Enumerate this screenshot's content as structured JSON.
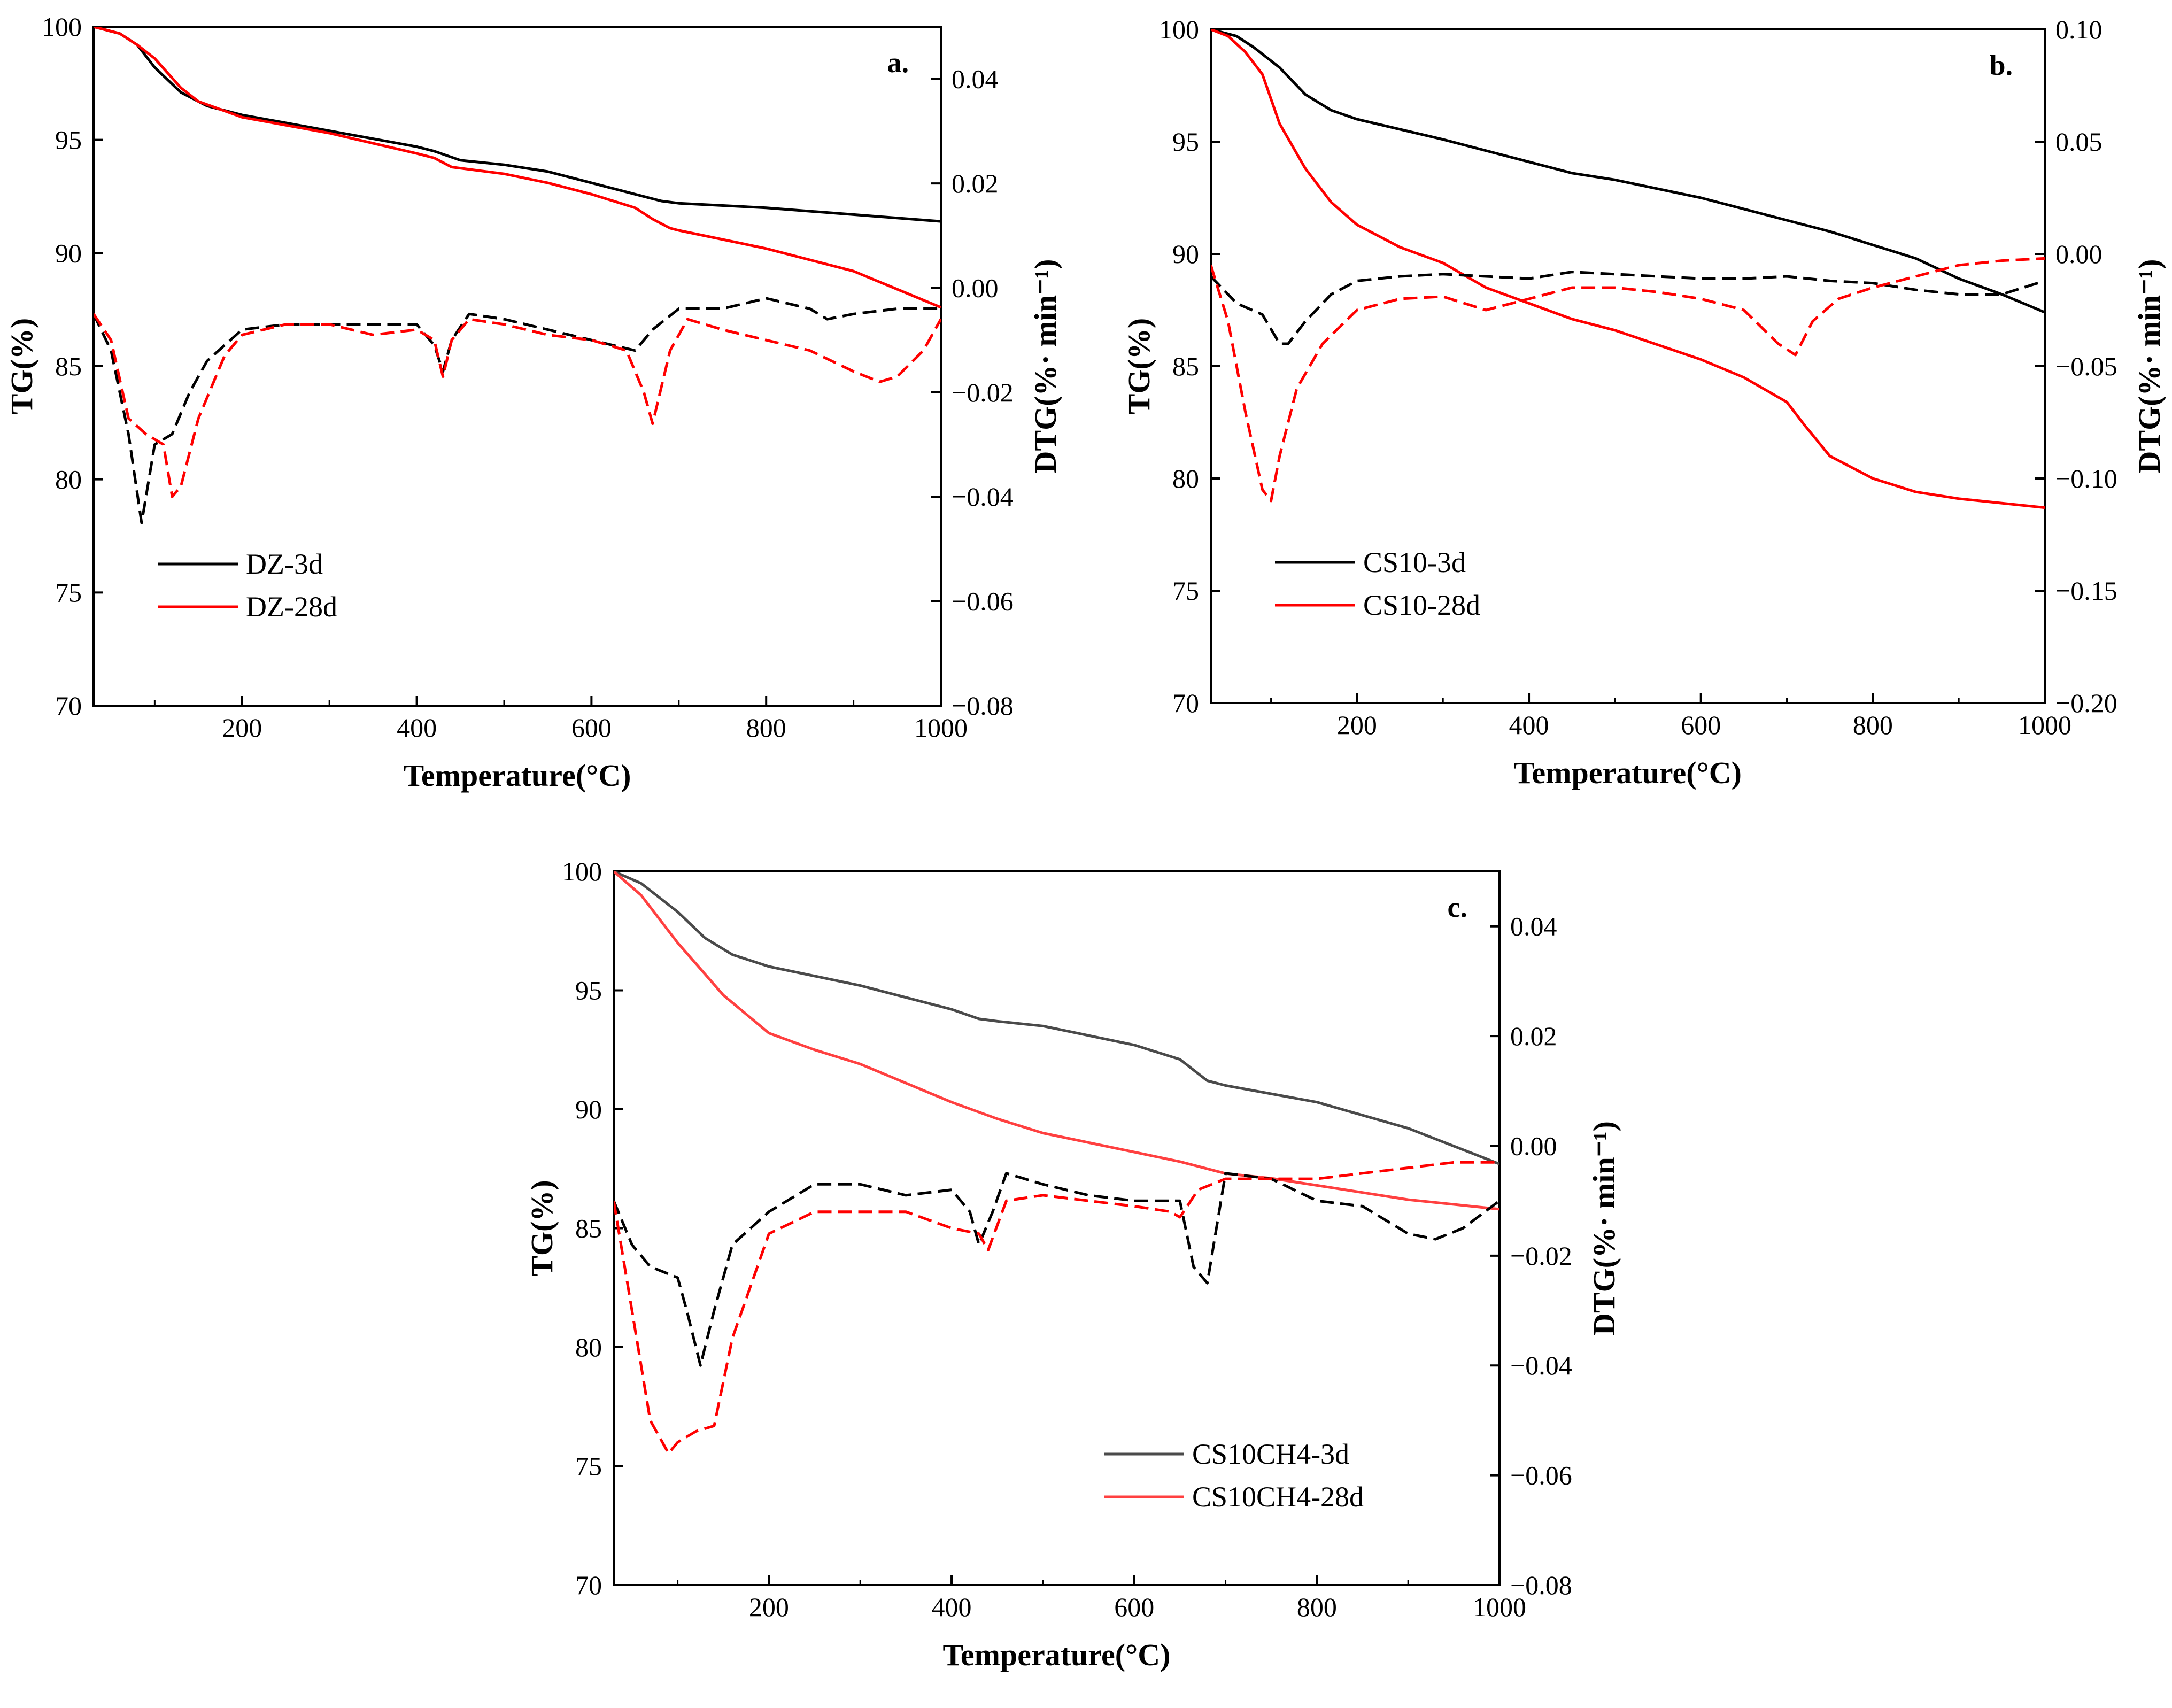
{
  "chart_data": [
    {
      "type": "line",
      "panel_label": "a.",
      "xlabel": "Temperature(°C)",
      "ylabel": "TG(%)",
      "y2label": "DTG(%· min⁻¹)",
      "xlim": [
        30,
        1000
      ],
      "ylim": [
        70,
        100
      ],
      "y2lim": [
        -0.08,
        0.05
      ],
      "xticks": [
        "200",
        "400",
        "600",
        "800",
        "1000"
      ],
      "yticks": [
        "70",
        "75",
        "80",
        "85",
        "90",
        "95",
        "100"
      ],
      "y2ticks": [
        "−0.08",
        "−0.06",
        "−0.04",
        "−0.02",
        "0.00",
        "0.02",
        "0.04"
      ],
      "legend_position": "lower-left",
      "legend": [
        "DZ-3d",
        "DZ-28d"
      ],
      "series": [
        {
          "name": "DZ-3d",
          "axis": "TG",
          "color": "#000000",
          "style": "solid",
          "x": [
            30,
            60,
            80,
            100,
            130,
            160,
            200,
            300,
            400,
            420,
            450,
            500,
            550,
            600,
            650,
            680,
            700,
            800,
            900,
            1000
          ],
          "y": [
            100,
            99.7,
            99.2,
            98.2,
            97.1,
            96.5,
            96.1,
            95.4,
            94.7,
            94.5,
            94.1,
            93.9,
            93.6,
            93.1,
            92.6,
            92.3,
            92.2,
            92.0,
            91.7,
            91.4
          ]
        },
        {
          "name": "DZ-28d",
          "axis": "TG",
          "color": "#ff0000",
          "style": "solid",
          "x": [
            30,
            60,
            80,
            100,
            130,
            150,
            200,
            300,
            400,
            420,
            440,
            500,
            550,
            600,
            650,
            670,
            690,
            700,
            800,
            900,
            1000
          ],
          "y": [
            100,
            99.7,
            99.2,
            98.6,
            97.3,
            96.7,
            96.0,
            95.3,
            94.4,
            94.2,
            93.8,
            93.5,
            93.1,
            92.6,
            92.0,
            91.5,
            91.1,
            91.0,
            90.2,
            89.2,
            87.6
          ]
        },
        {
          "name": "DZ-3d DTG",
          "axis": "DTG",
          "color": "#000000",
          "style": "dashed",
          "x": [
            30,
            50,
            70,
            85,
            100,
            120,
            140,
            160,
            200,
            250,
            300,
            350,
            400,
            420,
            430,
            440,
            460,
            500,
            550,
            600,
            650,
            670,
            700,
            750,
            800,
            850,
            870,
            900,
            950,
            1000
          ],
          "y": [
            -0.005,
            -0.012,
            -0.028,
            -0.045,
            -0.03,
            -0.028,
            -0.02,
            -0.014,
            -0.008,
            -0.007,
            -0.007,
            -0.007,
            -0.007,
            -0.011,
            -0.016,
            -0.01,
            -0.005,
            -0.006,
            -0.008,
            -0.01,
            -0.012,
            -0.008,
            -0.004,
            -0.004,
            -0.002,
            -0.004,
            -0.006,
            -0.005,
            -0.004,
            -0.004
          ]
        },
        {
          "name": "DZ-28d DTG",
          "axis": "DTG",
          "color": "#ff0000",
          "style": "dashed",
          "x": [
            30,
            50,
            70,
            90,
            110,
            120,
            130,
            150,
            180,
            200,
            250,
            300,
            350,
            400,
            420,
            430,
            440,
            460,
            500,
            550,
            600,
            640,
            660,
            670,
            690,
            710,
            750,
            800,
            850,
            900,
            930,
            950,
            980,
            1000
          ],
          "y": [
            -0.005,
            -0.01,
            -0.025,
            -0.028,
            -0.03,
            -0.04,
            -0.038,
            -0.025,
            -0.013,
            -0.009,
            -0.007,
            -0.007,
            -0.009,
            -0.008,
            -0.01,
            -0.017,
            -0.01,
            -0.006,
            -0.007,
            -0.009,
            -0.01,
            -0.012,
            -0.02,
            -0.026,
            -0.012,
            -0.006,
            -0.008,
            -0.01,
            -0.012,
            -0.016,
            -0.018,
            -0.017,
            -0.012,
            -0.006
          ]
        }
      ]
    },
    {
      "type": "line",
      "panel_label": "b.",
      "xlabel": "Temperature(°C)",
      "ylabel": "TG(%)",
      "y2label": "DTG(%· min⁻¹)",
      "xlim": [
        30,
        1000
      ],
      "ylim": [
        70,
        100
      ],
      "y2lim": [
        -0.2,
        0.1
      ],
      "xticks": [
        "200",
        "400",
        "600",
        "800",
        "1000"
      ],
      "yticks": [
        "70",
        "75",
        "80",
        "85",
        "90",
        "95",
        "100"
      ],
      "y2ticks": [
        "−0.20",
        "−0.15",
        "−0.10",
        "−0.05",
        "0.00",
        "0.05",
        "0.10"
      ],
      "legend_position": "lower-left",
      "legend": [
        "CS10-3d",
        "CS10-28d"
      ],
      "series": [
        {
          "name": "CS10-3d",
          "axis": "TG",
          "color": "#000000",
          "style": "solid",
          "x": [
            30,
            60,
            80,
            110,
            140,
            170,
            200,
            300,
            400,
            450,
            500,
            600,
            700,
            750,
            800,
            850,
            900,
            950,
            1000
          ],
          "y": [
            100,
            99.7,
            99.2,
            98.3,
            97.1,
            96.4,
            96.0,
            95.1,
            94.1,
            93.6,
            93.3,
            92.5,
            91.5,
            91.0,
            90.4,
            89.8,
            88.9,
            88.2,
            87.4
          ]
        },
        {
          "name": "CS10-28d",
          "axis": "TG",
          "color": "#ff0000",
          "style": "solid",
          "x": [
            30,
            50,
            70,
            90,
            110,
            140,
            170,
            200,
            250,
            300,
            350,
            400,
            450,
            500,
            600,
            650,
            700,
            720,
            750,
            800,
            850,
            900,
            950,
            1000
          ],
          "y": [
            100,
            99.7,
            99.0,
            98.0,
            95.8,
            93.8,
            92.3,
            91.3,
            90.3,
            89.6,
            88.5,
            87.8,
            87.1,
            86.6,
            85.3,
            84.5,
            83.4,
            82.4,
            81.0,
            80.0,
            79.4,
            79.1,
            78.9,
            78.7
          ]
        },
        {
          "name": "CS10-3d DTG",
          "axis": "DTG",
          "color": "#000000",
          "style": "dashed",
          "x": [
            30,
            60,
            90,
            110,
            120,
            140,
            170,
            200,
            250,
            300,
            350,
            400,
            450,
            500,
            550,
            600,
            650,
            700,
            750,
            800,
            850,
            900,
            950,
            1000
          ],
          "y": [
            -0.01,
            -0.022,
            -0.027,
            -0.04,
            -0.04,
            -0.03,
            -0.018,
            -0.012,
            -0.01,
            -0.009,
            -0.01,
            -0.011,
            -0.008,
            -0.009,
            -0.01,
            -0.011,
            -0.011,
            -0.01,
            -0.012,
            -0.013,
            -0.016,
            -0.018,
            -0.018,
            -0.012
          ]
        },
        {
          "name": "CS10-28d DTG",
          "axis": "DTG",
          "color": "#ff0000",
          "style": "dashed",
          "x": [
            30,
            50,
            70,
            90,
            100,
            110,
            130,
            160,
            200,
            250,
            300,
            350,
            380,
            400,
            450,
            500,
            550,
            600,
            650,
            690,
            710,
            730,
            760,
            800,
            850,
            900,
            950,
            1000
          ],
          "y": [
            -0.005,
            -0.03,
            -0.07,
            -0.105,
            -0.11,
            -0.09,
            -0.06,
            -0.04,
            -0.025,
            -0.02,
            -0.019,
            -0.025,
            -0.022,
            -0.02,
            -0.015,
            -0.015,
            -0.017,
            -0.02,
            -0.025,
            -0.04,
            -0.045,
            -0.03,
            -0.02,
            -0.015,
            -0.01,
            -0.005,
            -0.003,
            -0.002
          ]
        }
      ]
    },
    {
      "type": "line",
      "panel_label": "c.",
      "xlabel": "Temperature(°C)",
      "ylabel": "TG(%)",
      "y2label": "DTG(%· min⁻¹)",
      "xlim": [
        30,
        1000
      ],
      "ylim": [
        70,
        100
      ],
      "y2lim": [
        -0.08,
        0.05
      ],
      "xticks": [
        "200",
        "400",
        "600",
        "800",
        "1000"
      ],
      "yticks": [
        "70",
        "75",
        "80",
        "85",
        "90",
        "95",
        "100"
      ],
      "y2ticks": [
        "−0.08",
        "−0.06",
        "−0.04",
        "−0.02",
        "0.00",
        "0.02",
        "0.04"
      ],
      "legend_position": "lower-right",
      "legend": [
        "CS10CH4-3d",
        "CS10CH4-28d"
      ],
      "series": [
        {
          "name": "CS10CH4-3d",
          "axis": "TG",
          "color": "#4a4a4a",
          "style": "solid",
          "x": [
            30,
            60,
            100,
            130,
            160,
            200,
            300,
            400,
            430,
            450,
            500,
            600,
            650,
            680,
            700,
            800,
            900,
            1000
          ],
          "y": [
            100,
            99.5,
            98.3,
            97.2,
            96.5,
            96.0,
            95.2,
            94.2,
            93.8,
            93.7,
            93.5,
            92.7,
            92.1,
            91.2,
            91.0,
            90.3,
            89.2,
            87.7
          ]
        },
        {
          "name": "CS10CH4-28d",
          "axis": "TG",
          "color": "#ff4040",
          "style": "solid",
          "x": [
            30,
            60,
            100,
            150,
            200,
            250,
            300,
            400,
            450,
            500,
            600,
            650,
            700,
            750,
            800,
            900,
            1000
          ],
          "y": [
            100,
            99.0,
            97.0,
            94.8,
            93.2,
            92.5,
            91.9,
            90.3,
            89.6,
            89.0,
            88.2,
            87.8,
            87.3,
            87.1,
            86.8,
            86.2,
            85.8
          ]
        },
        {
          "name": "CS10CH4-3d DTG",
          "axis": "DTG",
          "color": "#000000",
          "style": "dashed",
          "x": [
            30,
            50,
            70,
            100,
            110,
            125,
            140,
            160,
            200,
            250,
            300,
            350,
            400,
            420,
            430,
            445,
            460,
            500,
            550,
            600,
            650,
            665,
            680,
            700,
            750,
            800,
            850,
            900,
            930,
            960,
            1000
          ],
          "y": [
            -0.01,
            -0.018,
            -0.022,
            -0.024,
            -0.03,
            -0.04,
            -0.03,
            -0.018,
            -0.012,
            -0.007,
            -0.007,
            -0.009,
            -0.008,
            -0.012,
            -0.018,
            -0.012,
            -0.005,
            -0.007,
            -0.009,
            -0.01,
            -0.01,
            -0.022,
            -0.025,
            -0.005,
            -0.006,
            -0.01,
            -0.011,
            -0.016,
            -0.017,
            -0.015,
            -0.01
          ]
        },
        {
          "name": "CS10CH4-28d DTG",
          "axis": "DTG",
          "color": "#ff0000",
          "style": "dashed",
          "x": [
            30,
            50,
            70,
            90,
            100,
            120,
            140,
            160,
            200,
            250,
            300,
            350,
            400,
            430,
            440,
            460,
            500,
            550,
            600,
            640,
            650,
            670,
            700,
            750,
            800,
            850,
            900,
            950,
            1000
          ],
          "y": [
            -0.01,
            -0.03,
            -0.05,
            -0.056,
            -0.054,
            -0.052,
            -0.051,
            -0.035,
            -0.016,
            -0.012,
            -0.012,
            -0.012,
            -0.015,
            -0.016,
            -0.019,
            -0.01,
            -0.009,
            -0.01,
            -0.011,
            -0.012,
            -0.013,
            -0.008,
            -0.006,
            -0.006,
            -0.006,
            -0.005,
            -0.004,
            -0.003,
            -0.003
          ]
        }
      ]
    }
  ]
}
